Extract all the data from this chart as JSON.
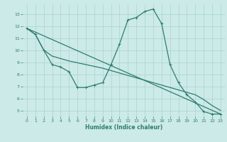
{
  "title": "",
  "xlabel": "Humidex (Indice chaleur)",
  "bg_color": "#cceae7",
  "line_color": "#2e7d6e",
  "grid_color": "#aad4cf",
  "xlim": [
    -0.5,
    23.5
  ],
  "ylim": [
    4.5,
    13.8
  ],
  "xticks": [
    0,
    1,
    2,
    3,
    4,
    5,
    6,
    7,
    8,
    9,
    10,
    11,
    12,
    13,
    14,
    15,
    16,
    17,
    18,
    19,
    20,
    21,
    22,
    23
  ],
  "yticks": [
    5,
    6,
    7,
    8,
    9,
    10,
    11,
    12,
    13
  ],
  "line1_x": [
    0,
    1,
    2,
    3,
    4,
    5,
    6,
    7,
    8,
    9,
    10,
    11,
    12,
    13,
    14,
    15,
    16,
    17,
    18,
    19,
    20,
    21,
    22,
    23
  ],
  "line1_y": [
    11.8,
    11.3,
    10.0,
    8.8,
    8.6,
    8.2,
    6.9,
    6.9,
    7.1,
    7.3,
    8.8,
    10.5,
    12.5,
    12.7,
    13.2,
    13.4,
    12.2,
    8.8,
    7.3,
    6.3,
    5.7,
    4.9,
    4.7,
    4.7
  ],
  "line2_x": [
    0,
    23
  ],
  "line2_y": [
    11.8,
    4.7
  ],
  "line3_x": [
    0,
    1,
    2,
    3,
    4,
    5,
    9,
    10,
    11,
    12,
    13,
    14,
    15,
    16,
    17,
    18,
    19,
    20,
    21,
    22,
    23
  ],
  "line3_y": [
    11.8,
    11.3,
    10.0,
    9.5,
    9.3,
    9.1,
    8.5,
    8.3,
    8.1,
    7.9,
    7.7,
    7.5,
    7.3,
    7.1,
    6.9,
    6.7,
    6.5,
    6.3,
    5.9,
    5.4,
    5.0
  ]
}
